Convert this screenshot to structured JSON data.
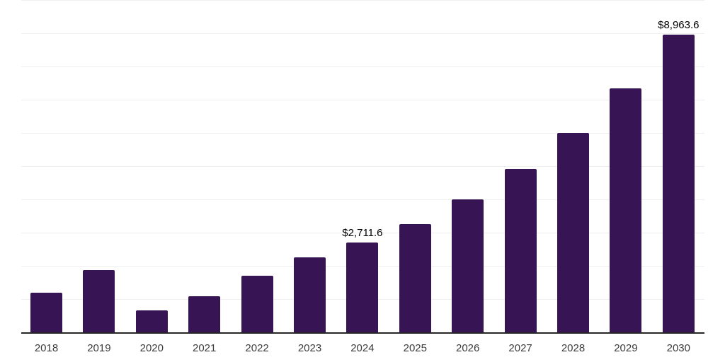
{
  "chart_data": {
    "type": "bar",
    "title": "",
    "xlabel": "",
    "ylabel": "",
    "legend_position": "none",
    "grid": true,
    "categories": [
      "2018",
      "2019",
      "2020",
      "2021",
      "2022",
      "2023",
      "2024",
      "2025",
      "2026",
      "2027",
      "2028",
      "2029",
      "2030"
    ],
    "values": [
      1185,
      1865,
      670,
      1080,
      1700,
      2245,
      2711.6,
      3255,
      4000,
      4920,
      5990,
      7350,
      8963.6
    ],
    "value_labels": [
      {
        "category": "2024",
        "text": "$2,711.6"
      },
      {
        "category": "2030",
        "text": "$8,963.6"
      }
    ],
    "ylim": [
      0,
      10000
    ],
    "gridline_interval": 1000,
    "colors": {
      "bar": "#371453",
      "gridline": "#efefef",
      "axis_line": "#262626",
      "x_tick_label": "#3b3b3b",
      "value_label": "#000000",
      "background": "#ffffff"
    }
  }
}
